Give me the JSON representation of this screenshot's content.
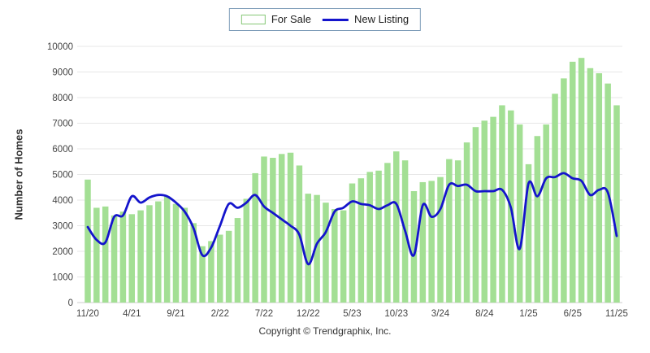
{
  "legend": {
    "items": [
      {
        "label": "For Sale",
        "swatch": "bar",
        "color": "#a3df94"
      },
      {
        "label": "New Listing",
        "swatch": "line",
        "color": "#1414cc"
      }
    ]
  },
  "footer": {
    "copyright": "Copyright © Trendgraphix, Inc."
  },
  "chart_data": {
    "type": "combo-bar-line",
    "title": "",
    "ylabel": "Number of Homes",
    "xlabel": "",
    "ylim": [
      0,
      10000
    ],
    "ytick_step": 1000,
    "grid": true,
    "legend_position": "top-center",
    "x_tick_every": 5,
    "x_tick_labels": [
      "11/20",
      "4/21",
      "9/21",
      "2/22",
      "7/22",
      "12/22",
      "5/23",
      "10/23",
      "3/24",
      "8/24",
      "1/25",
      "6/25",
      "11/25"
    ],
    "categories": [
      "11/20",
      "12/20",
      "1/21",
      "2/21",
      "3/21",
      "4/21",
      "5/21",
      "6/21",
      "7/21",
      "8/21",
      "9/21",
      "10/21",
      "11/21",
      "12/21",
      "1/22",
      "2/22",
      "3/22",
      "4/22",
      "5/22",
      "6/22",
      "7/22",
      "8/22",
      "9/22",
      "10/22",
      "11/22",
      "12/22",
      "1/23",
      "2/23",
      "3/23",
      "4/23",
      "5/23",
      "6/23",
      "7/23",
      "8/23",
      "9/23",
      "10/23",
      "11/23",
      "12/23",
      "1/24",
      "2/24",
      "3/24",
      "4/24",
      "5/24",
      "6/24",
      "7/24",
      "8/24",
      "9/24",
      "10/24",
      "11/24",
      "12/24",
      "1/25",
      "2/25",
      "3/25",
      "4/25",
      "5/25",
      "6/25",
      "7/25",
      "8/25",
      "9/25",
      "10/25",
      "11/25"
    ],
    "series": [
      {
        "name": "For Sale",
        "mark": "bar",
        "color": "#a3df94",
        "values": [
          4800,
          3700,
          3750,
          3400,
          3550,
          3450,
          3600,
          3800,
          3950,
          4150,
          3850,
          3700,
          3100,
          2200,
          2400,
          2650,
          2800,
          3300,
          4050,
          5050,
          5700,
          5650,
          5800,
          5850,
          5350,
          4250,
          4200,
          3900,
          3650,
          3600,
          4650,
          4850,
          5100,
          5150,
          5450,
          5900,
          5550,
          4350,
          4700,
          4750,
          4900,
          5600,
          5550,
          6250,
          6850,
          7100,
          7250,
          7700,
          7500,
          6950,
          5400,
          6500,
          6950,
          8150,
          8750,
          9400,
          9550,
          9150,
          8950,
          8550,
          7700
        ]
      },
      {
        "name": "New Listing",
        "mark": "line",
        "color": "#1414cc",
        "values": [
          2950,
          2450,
          2350,
          3350,
          3400,
          4150,
          3900,
          4100,
          4200,
          4150,
          3900,
          3550,
          2900,
          1850,
          2150,
          3000,
          3850,
          3700,
          3900,
          4200,
          3750,
          3500,
          3250,
          3000,
          2650,
          1500,
          2300,
          2750,
          3550,
          3700,
          3950,
          3850,
          3800,
          3650,
          3800,
          3850,
          2800,
          1850,
          3800,
          3350,
          3650,
          4600,
          4550,
          4600,
          4350,
          4350,
          4350,
          4400,
          3700,
          2100,
          4650,
          4150,
          4850,
          4900,
          5050,
          4850,
          4750,
          4200,
          4400,
          4300,
          2600
        ]
      }
    ]
  },
  "style": {
    "grid_color": "#e7e7e7",
    "baseline_color": "#cccccc",
    "tick_text_color": "#444444",
    "bar_width": 7.5,
    "line_width": 2.8
  }
}
